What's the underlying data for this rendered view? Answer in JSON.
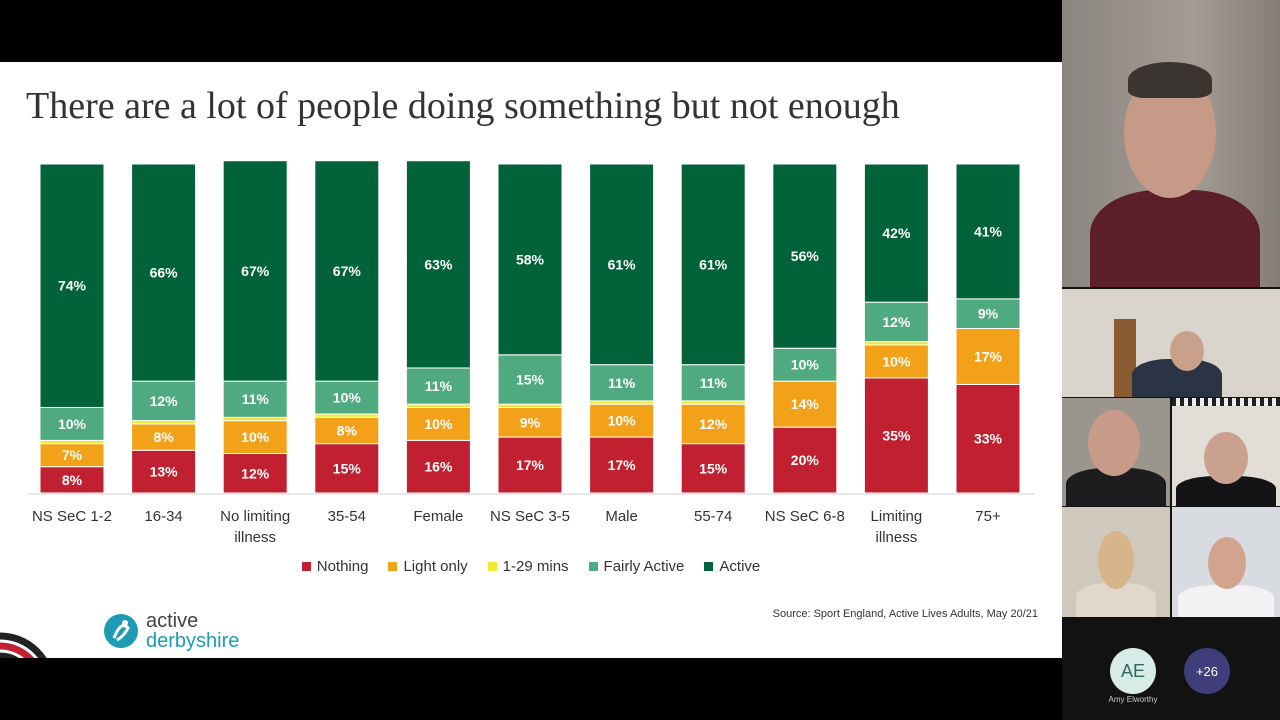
{
  "slide": {
    "title": "There are a lot of people doing something but not enough",
    "source": "Source: Sport England, Active Lives Adults, May 20/21",
    "logo": {
      "line1": "active",
      "line2": "derbyshire"
    }
  },
  "chart_data": {
    "type": "bar",
    "stacked": true,
    "categories": [
      [
        "NS SeC 1-2"
      ],
      [
        "16-34"
      ],
      [
        "No limiting",
        "illness"
      ],
      [
        "35-54"
      ],
      [
        "Female"
      ],
      [
        "NS SeC 3-5"
      ],
      [
        "Male"
      ],
      [
        "55-74"
      ],
      [
        "NS SeC 6-8"
      ],
      [
        "Limiting",
        "illness"
      ],
      [
        "75+"
      ]
    ],
    "series": [
      {
        "name": "Nothing",
        "color": "#c0202f",
        "values": [
          8,
          13,
          12,
          15,
          16,
          17,
          17,
          15,
          20,
          35,
          33
        ],
        "labels": [
          "8%",
          "13%",
          "12%",
          "15%",
          "16%",
          "17%",
          "17%",
          "15%",
          "20%",
          "35%",
          "33%"
        ]
      },
      {
        "name": "Light only",
        "color": "#f4a11a",
        "values": [
          7,
          8,
          10,
          8,
          10,
          9,
          10,
          12,
          14,
          10,
          17
        ],
        "labels": [
          "7%",
          "8%",
          "10%",
          "8%",
          "10%",
          "9%",
          "10%",
          "12%",
          "14%",
          "10%",
          "17%"
        ]
      },
      {
        "name": "1-29 mins",
        "color": "#f2e830",
        "values": [
          1,
          1,
          1,
          1,
          1,
          1,
          1,
          1,
          0,
          1,
          0
        ],
        "labels": [
          "",
          "",
          "",
          "",
          "",
          "",
          "",
          "",
          "",
          "",
          ""
        ]
      },
      {
        "name": "Fairly Active",
        "color": "#4faa7f",
        "values": [
          10,
          12,
          11,
          10,
          11,
          15,
          11,
          11,
          10,
          12,
          9
        ],
        "labels": [
          "10%",
          "12%",
          "11%",
          "10%",
          "11%",
          "15%",
          "11%",
          "11%",
          "10%",
          "12%",
          "9%"
        ]
      },
      {
        "name": "Active",
        "color": "#02633a",
        "values": [
          74,
          66,
          67,
          67,
          63,
          58,
          61,
          61,
          56,
          42,
          41
        ],
        "labels": [
          "74%",
          "66%",
          "67%",
          "67%",
          "63%",
          "58%",
          "61%",
          "61%",
          "56%",
          "42%",
          "41%"
        ]
      }
    ],
    "ylim": [
      0,
      100
    ],
    "legend_position": "bottom",
    "grid": false
  },
  "meeting": {
    "participant_initials": "AE",
    "participant_name": "Amy Elworthy",
    "more_count": "+26"
  }
}
